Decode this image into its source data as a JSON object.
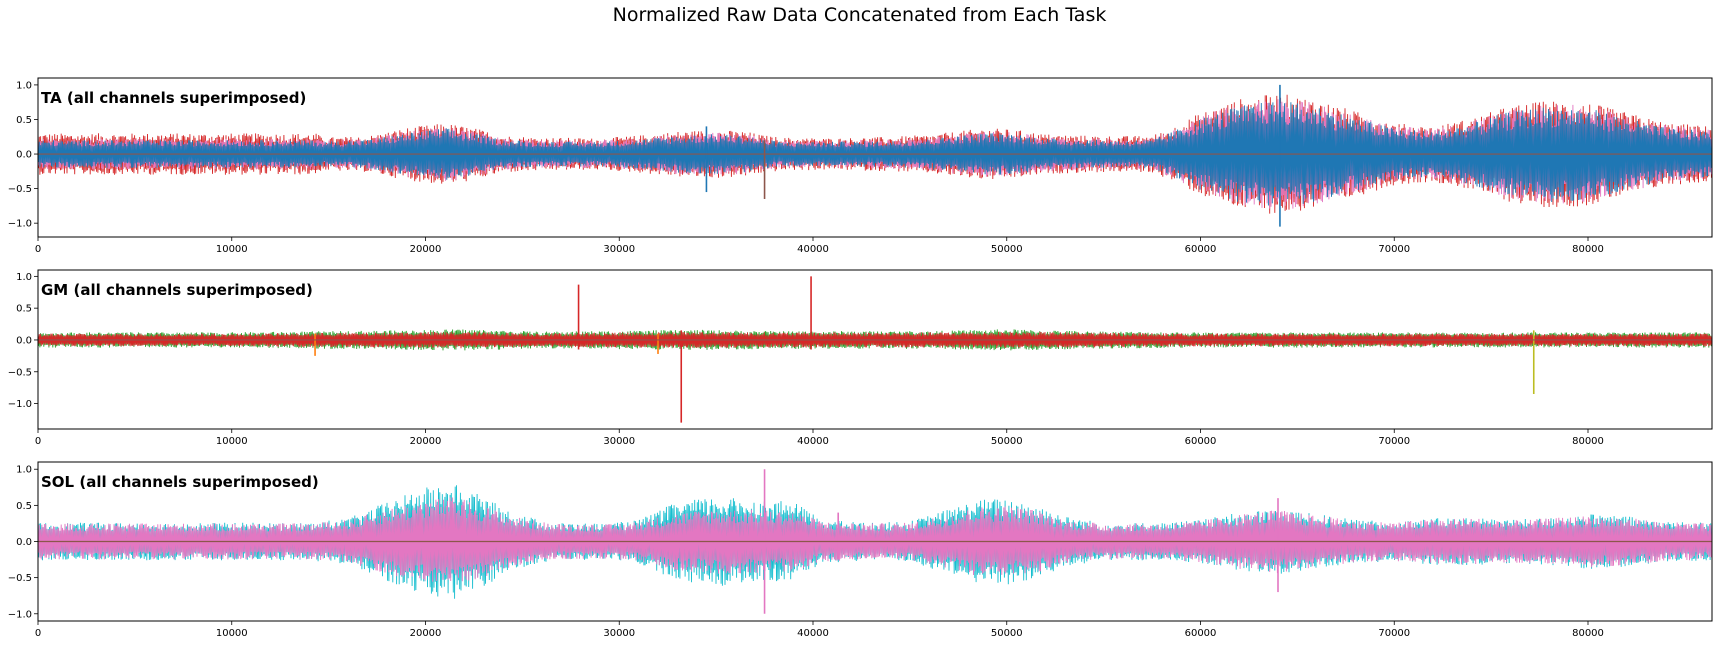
{
  "figure": {
    "suptitle": "Normalized Raw Data Concatenated from Each Task"
  },
  "colors": {
    "blue": "#1f77b4",
    "orange": "#ff7f0e",
    "green": "#2ca02c",
    "red": "#d62728",
    "purple": "#9467bd",
    "brown": "#8c564b",
    "pink": "#e377c2",
    "olive": "#bcbd22",
    "cyan": "#17becf",
    "gray": "#7f7f7f"
  },
  "chart_data": [
    {
      "type": "line",
      "title": "TA (all channels superimposed)",
      "xlim": [
        0,
        86400
      ],
      "ylim": [
        -1.2,
        1.1
      ],
      "xticks": [
        0,
        10000,
        20000,
        30000,
        40000,
        50000,
        60000,
        70000,
        80000
      ],
      "yticks": [
        -1.0,
        -0.5,
        0.0,
        0.5,
        1.0
      ],
      "grid": false,
      "envelope_x": [
        0,
        14500,
        14600,
        17000,
        19000,
        21000,
        22500,
        24000,
        26000,
        29000,
        31000,
        33000,
        35000,
        36500,
        37500,
        38500,
        41000,
        44000,
        46000,
        47500,
        49000,
        50500,
        52000,
        54000,
        56000,
        57500,
        58500,
        60000,
        62000,
        64000,
        66000,
        68000,
        70000,
        72000,
        74000,
        76000,
        78000,
        80000,
        82000,
        84000,
        86400
      ],
      "series": [
        {
          "color": "red",
          "amplitude": [
            0.3,
            0.3,
            0.24,
            0.26,
            0.38,
            0.45,
            0.38,
            0.27,
            0.24,
            0.23,
            0.27,
            0.33,
            0.35,
            0.33,
            0.27,
            0.24,
            0.23,
            0.25,
            0.28,
            0.33,
            0.38,
            0.35,
            0.29,
            0.27,
            0.26,
            0.27,
            0.38,
            0.6,
            0.8,
            0.88,
            0.8,
            0.62,
            0.45,
            0.4,
            0.52,
            0.7,
            0.78,
            0.75,
            0.6,
            0.46,
            0.4
          ]
        },
        {
          "color": "pink",
          "amplitude": [
            0.22,
            0.22,
            0.2,
            0.22,
            0.33,
            0.4,
            0.33,
            0.23,
            0.2,
            0.2,
            0.23,
            0.29,
            0.31,
            0.29,
            0.23,
            0.2,
            0.2,
            0.21,
            0.24,
            0.29,
            0.33,
            0.31,
            0.25,
            0.23,
            0.22,
            0.23,
            0.34,
            0.55,
            0.74,
            0.82,
            0.74,
            0.57,
            0.41,
            0.36,
            0.48,
            0.65,
            0.73,
            0.7,
            0.55,
            0.42,
            0.36
          ]
        },
        {
          "color": "blue",
          "amplitude": [
            0.2,
            0.2,
            0.18,
            0.21,
            0.3,
            0.38,
            0.3,
            0.21,
            0.18,
            0.18,
            0.21,
            0.27,
            0.29,
            0.27,
            0.21,
            0.18,
            0.18,
            0.19,
            0.22,
            0.27,
            0.31,
            0.29,
            0.23,
            0.21,
            0.2,
            0.21,
            0.32,
            0.52,
            0.7,
            0.78,
            0.7,
            0.53,
            0.38,
            0.33,
            0.45,
            0.62,
            0.7,
            0.67,
            0.52,
            0.38,
            0.33
          ]
        }
      ],
      "spikes": [
        {
          "x": 37500,
          "ymin": -0.65,
          "ymax": 0.2,
          "color": "brown"
        },
        {
          "x": 64100,
          "ymin": -1.05,
          "ymax": 1.0,
          "color": "blue"
        },
        {
          "x": 34500,
          "ymin": -0.55,
          "ymax": 0.4,
          "color": "blue"
        }
      ],
      "baseline_color": "brown"
    },
    {
      "type": "line",
      "title": "GM (all channels superimposed)",
      "xlim": [
        0,
        86400
      ],
      "ylim": [
        -1.4,
        1.1
      ],
      "xticks": [
        0,
        10000,
        20000,
        30000,
        40000,
        50000,
        60000,
        70000,
        80000
      ],
      "yticks": [
        -1.0,
        -0.5,
        0.0,
        0.5,
        1.0
      ],
      "grid": false,
      "envelope_x": [
        0,
        10000,
        18000,
        22000,
        26000,
        34000,
        38000,
        46000,
        50000,
        54000,
        60000,
        70000,
        80000,
        86400
      ],
      "series": [
        {
          "color": "green",
          "amplitude": [
            0.12,
            0.12,
            0.15,
            0.17,
            0.13,
            0.16,
            0.14,
            0.14,
            0.17,
            0.14,
            0.12,
            0.12,
            0.12,
            0.12
          ]
        },
        {
          "color": "red",
          "amplitude": [
            0.1,
            0.1,
            0.12,
            0.13,
            0.11,
            0.13,
            0.12,
            0.12,
            0.13,
            0.12,
            0.1,
            0.1,
            0.1,
            0.1
          ]
        }
      ],
      "spikes": [
        {
          "x": 27900,
          "ymin": -0.15,
          "ymax": 0.87,
          "color": "red"
        },
        {
          "x": 33200,
          "ymin": -1.3,
          "ymax": 0.15,
          "color": "red"
        },
        {
          "x": 39900,
          "ymin": -0.15,
          "ymax": 1.0,
          "color": "red"
        },
        {
          "x": 14300,
          "ymin": -0.25,
          "ymax": 0.1,
          "color": "orange"
        },
        {
          "x": 32000,
          "ymin": -0.22,
          "ymax": 0.1,
          "color": "orange"
        },
        {
          "x": 77200,
          "ymin": -0.85,
          "ymax": 0.15,
          "color": "olive"
        }
      ],
      "baseline_color": "brown"
    },
    {
      "type": "line",
      "title": "SOL (all channels superimposed)",
      "xlim": [
        0,
        86400
      ],
      "ylim": [
        -1.1,
        1.1
      ],
      "xticks": [
        0,
        10000,
        20000,
        30000,
        40000,
        50000,
        60000,
        70000,
        80000
      ],
      "yticks": [
        -1.0,
        -0.5,
        0.0,
        0.5,
        1.0
      ],
      "grid": false,
      "envelope_x": [
        0,
        14000,
        16000,
        18000,
        20000,
        21500,
        23000,
        24500,
        26500,
        29500,
        31000,
        33000,
        35000,
        37000,
        39000,
        40500,
        43000,
        45000,
        47000,
        48500,
        50000,
        51500,
        53000,
        55000,
        58000,
        60000,
        62000,
        64000,
        66000,
        68000,
        70000,
        72000,
        74000,
        76000,
        78000,
        80000,
        82000,
        84000,
        86400
      ],
      "series": [
        {
          "color": "cyan",
          "amplitude": [
            0.26,
            0.26,
            0.32,
            0.55,
            0.75,
            0.8,
            0.62,
            0.4,
            0.26,
            0.25,
            0.3,
            0.55,
            0.62,
            0.58,
            0.55,
            0.3,
            0.26,
            0.28,
            0.45,
            0.58,
            0.6,
            0.52,
            0.35,
            0.26,
            0.26,
            0.3,
            0.4,
            0.45,
            0.38,
            0.3,
            0.28,
            0.32,
            0.34,
            0.3,
            0.33,
            0.38,
            0.35,
            0.28,
            0.26
          ]
        },
        {
          "color": "pink",
          "amplitude": [
            0.25,
            0.25,
            0.3,
            0.45,
            0.58,
            0.62,
            0.5,
            0.35,
            0.25,
            0.24,
            0.28,
            0.4,
            0.45,
            0.44,
            0.42,
            0.28,
            0.25,
            0.26,
            0.38,
            0.48,
            0.5,
            0.44,
            0.3,
            0.25,
            0.25,
            0.29,
            0.38,
            0.44,
            0.36,
            0.29,
            0.27,
            0.31,
            0.33,
            0.29,
            0.32,
            0.36,
            0.33,
            0.27,
            0.25
          ]
        }
      ],
      "spikes": [
        {
          "x": 37500,
          "ymin": -1.0,
          "ymax": 1.0,
          "color": "pink"
        },
        {
          "x": 41300,
          "ymin": -0.25,
          "ymax": 0.4,
          "color": "pink"
        },
        {
          "x": 64000,
          "ymin": -0.7,
          "ymax": 0.6,
          "color": "pink"
        }
      ],
      "baseline_color": "brown"
    }
  ]
}
